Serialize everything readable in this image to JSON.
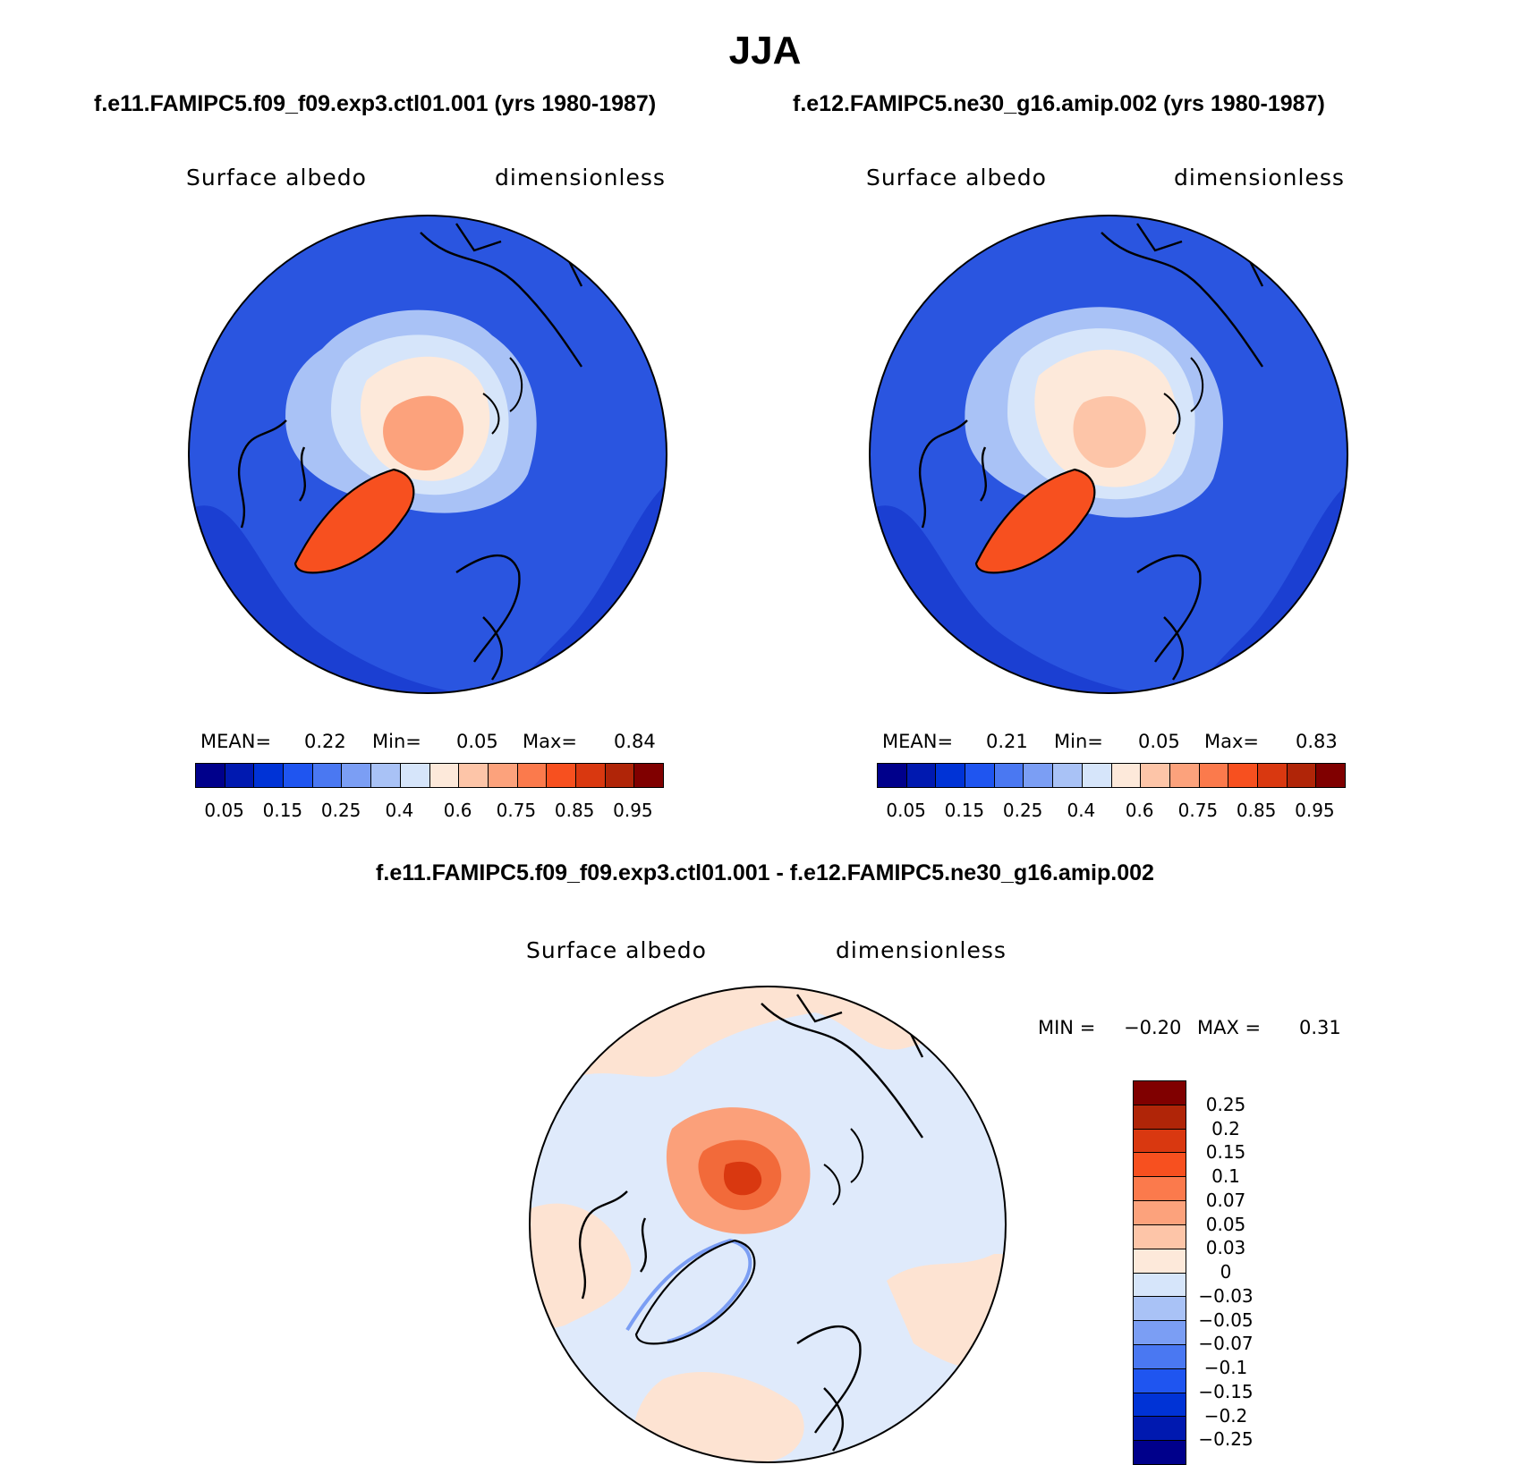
{
  "title": "JJA",
  "panels": [
    {
      "case": "f.e11.FAMIPC5.f09_f09.exp3.ctl01.001 (yrs 1980-1987)",
      "variable": "Surface albedo",
      "units": "dimensionless",
      "mean_label": "MEAN=",
      "mean": "0.22",
      "min_label": "Min=",
      "min": "0.05",
      "max_label": "Max=",
      "max": "0.84"
    },
    {
      "case": "f.e12.FAMIPC5.ne30_g16.amip.002 (yrs 1980-1987)",
      "variable": "Surface albedo",
      "units": "dimensionless",
      "mean_label": "MEAN=",
      "mean": "0.21",
      "min_label": "Min=",
      "min": "0.05",
      "max_label": "Max=",
      "max": "0.83"
    }
  ],
  "colorbar_abs": {
    "colors": [
      "#00008b",
      "#0019b0",
      "#0033d6",
      "#1f55f0",
      "#4a78f2",
      "#7b9ef4",
      "#a9c2f6",
      "#d6e5fa",
      "#fde9da",
      "#fdc5a8",
      "#fca27c",
      "#fb7a4c",
      "#f7501f",
      "#d93810",
      "#b02508",
      "#800000"
    ],
    "tick_labels": [
      "0.05",
      "0.15",
      "0.25",
      "0.4",
      "0.6",
      "0.75",
      "0.85",
      "0.95"
    ]
  },
  "difference": {
    "title": "f.e11.FAMIPC5.f09_f09.exp3.ctl01.001 - f.e12.FAMIPC5.ne30_g16.amip.002",
    "variable": "Surface albedo",
    "units": "dimensionless",
    "min_label": "MIN =",
    "min": "−0.20",
    "max_label": "MAX =",
    "max": "0.31",
    "colors": [
      "#800000",
      "#b02508",
      "#d93810",
      "#f7501f",
      "#fb7a4c",
      "#fca27c",
      "#fdc5a8",
      "#fde9da",
      "#d6e5fa",
      "#a9c2f6",
      "#7b9ef4",
      "#4a78f2",
      "#1f55f0",
      "#0033d6",
      "#0019b0",
      "#00008b"
    ],
    "tick_labels": [
      "0.25",
      "0.2",
      "0.15",
      "0.1",
      "0.07",
      "0.05",
      "0.03",
      "0",
      "−0.03",
      "−0.05",
      "−0.07",
      "−0.1",
      "−0.15",
      "−0.2",
      "−0.25"
    ]
  },
  "map_fill_colors": {
    "ocean": "#2a55e0",
    "ocean_dark": "#1b3fd2",
    "sea_ice": "#a9c2f6",
    "ice_core": "#fde9da",
    "ice_warm": "#fca27c",
    "greenland": "#f7501f",
    "diff_bg": "#dfeafb",
    "diff_pos": "#fde3d2",
    "diff_hot": "#f26a3a",
    "diff_core": "#d93810"
  }
}
